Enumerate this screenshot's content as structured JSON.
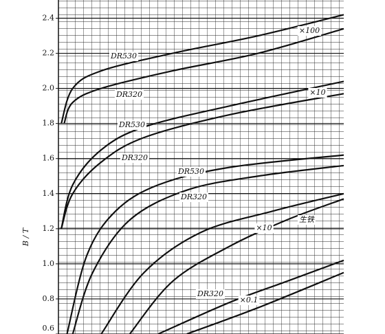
{
  "chart_data": {
    "type": "line",
    "y_label": "B / T",
    "ylim": [
      0.6,
      2.5
    ],
    "xlim": [
      0,
      100
    ],
    "yticks": [
      {
        "value": 0.6,
        "label": "0.6"
      },
      0.8,
      {
        "value": 1,
        "label": "1.0"
      },
      1.2,
      1.4,
      1.6,
      1.8,
      {
        "value": 2,
        "label": "2.0"
      },
      2.2,
      2.4
    ],
    "grid": true,
    "color": "#111111",
    "series": [
      {
        "x": [
          1,
          5,
          15,
          40,
          70,
          100
        ],
        "values": [
          1.8,
          2.0,
          2.1,
          2.2,
          2.3,
          2.42
        ]
      },
      {
        "x": [
          2,
          5,
          15,
          40,
          70,
          100
        ],
        "values": [
          1.8,
          1.92,
          2.0,
          2.1,
          2.2,
          2.34
        ]
      },
      {
        "x": [
          1,
          5,
          15,
          30,
          60,
          100
        ],
        "values": [
          1.2,
          1.45,
          1.65,
          1.78,
          1.9,
          2.04
        ]
      },
      {
        "x": [
          1,
          5,
          15,
          30,
          60,
          100
        ],
        "values": [
          1.2,
          1.4,
          1.58,
          1.72,
          1.85,
          1.97
        ]
      },
      {
        "x": [
          3,
          10,
          20,
          35,
          60,
          100
        ],
        "values": [
          0.6,
          1.05,
          1.3,
          1.45,
          1.55,
          1.62
        ]
      },
      {
        "x": [
          5,
          12,
          25,
          45,
          70,
          100
        ],
        "values": [
          0.6,
          0.95,
          1.25,
          1.42,
          1.5,
          1.56
        ]
      },
      {
        "x": [
          15,
          30,
          50,
          75,
          100
        ],
        "values": [
          0.6,
          0.95,
          1.18,
          1.3,
          1.4
        ]
      },
      {
        "x": [
          25,
          40,
          60,
          80,
          100
        ],
        "values": [
          0.6,
          0.9,
          1.1,
          1.25,
          1.37
        ]
      },
      {
        "x": [
          35,
          60,
          80,
          100
        ],
        "values": [
          0.6,
          0.78,
          0.9,
          1.02
        ]
      },
      {
        "x": [
          45,
          70,
          100
        ],
        "values": [
          0.6,
          0.75,
          0.95
        ]
      }
    ],
    "annotations": [
      "DR530",
      "DR320",
      "DR530",
      "DR320",
      "DR530",
      "DR320",
      "×100",
      "×10",
      "×10",
      "生铁",
      "DR320",
      "×0.1"
    ]
  }
}
